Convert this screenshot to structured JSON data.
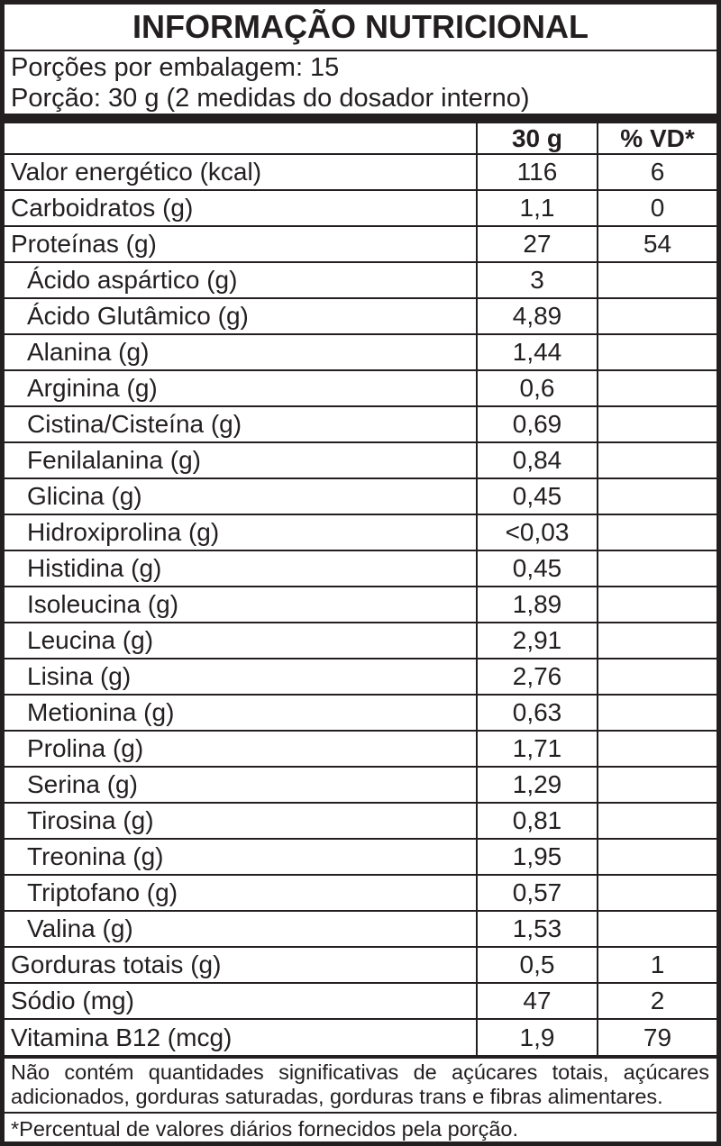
{
  "colors": {
    "ink": "#231f20",
    "background": "#ffffff"
  },
  "header": {
    "title": "INFORMAÇÃO NUTRICIONAL",
    "servings_line": "Porções por embalagem: 15",
    "portion_line": "Porção: 30 g (2 medidas do dosador interno)"
  },
  "table": {
    "col_amount": "30 g",
    "col_vd": "% VD*",
    "rows": [
      {
        "label": "Valor energético (kcal)",
        "value": "116",
        "vd": "6",
        "indent": false
      },
      {
        "label": "Carboidratos (g)",
        "value": "1,1",
        "vd": "0",
        "indent": false
      },
      {
        "label": "Proteínas (g)",
        "value": "27",
        "vd": "54",
        "indent": false
      },
      {
        "label": "Ácido aspártico (g)",
        "value": "3",
        "vd": "",
        "indent": true
      },
      {
        "label": "Ácido Glutâmico (g)",
        "value": "4,89",
        "vd": "",
        "indent": true
      },
      {
        "label": "Alanina (g)",
        "value": "1,44",
        "vd": "",
        "indent": true
      },
      {
        "label": "Arginina (g)",
        "value": "0,6",
        "vd": "",
        "indent": true
      },
      {
        "label": "Cistina/Cisteína (g)",
        "value": "0,69",
        "vd": "",
        "indent": true
      },
      {
        "label": "Fenilalanina (g)",
        "value": "0,84",
        "vd": "",
        "indent": true
      },
      {
        "label": "Glicina (g)",
        "value": "0,45",
        "vd": "",
        "indent": true
      },
      {
        "label": "Hidroxiprolina (g)",
        "value": "<0,03",
        "vd": "",
        "indent": true
      },
      {
        "label": "Histidina (g)",
        "value": "0,45",
        "vd": "",
        "indent": true
      },
      {
        "label": "Isoleucina (g)",
        "value": "1,89",
        "vd": "",
        "indent": true
      },
      {
        "label": "Leucina (g)",
        "value": "2,91",
        "vd": "",
        "indent": true
      },
      {
        "label": "Lisina (g)",
        "value": "2,76",
        "vd": "",
        "indent": true
      },
      {
        "label": "Metionina (g)",
        "value": "0,63",
        "vd": "",
        "indent": true
      },
      {
        "label": "Prolina (g)",
        "value": "1,71",
        "vd": "",
        "indent": true
      },
      {
        "label": "Serina (g)",
        "value": "1,29",
        "vd": "",
        "indent": true
      },
      {
        "label": "Tirosina (g)",
        "value": "0,81",
        "vd": "",
        "indent": true
      },
      {
        "label": "Treonina (g)",
        "value": "1,95",
        "vd": "",
        "indent": true
      },
      {
        "label": "Triptofano (g)",
        "value": "0,57",
        "vd": "",
        "indent": true
      },
      {
        "label": "Valina (g)",
        "value": "1,53",
        "vd": "",
        "indent": true
      },
      {
        "label": "Gorduras totais (g)",
        "value": "0,5",
        "vd": "1",
        "indent": false
      },
      {
        "label": "Sódio (mg)",
        "value": "47",
        "vd": "2",
        "indent": false
      },
      {
        "label": "Vitamina B12 (mcg)",
        "value": "1,9",
        "vd": "79",
        "indent": false
      }
    ]
  },
  "footer": {
    "note": "Não contém quantidades significativas de açúcares totais, açúcares adicionados, gorduras saturadas, gorduras trans e fibras alimentares.",
    "footnote": "*Percentual de valores diários fornecidos pela porção."
  }
}
